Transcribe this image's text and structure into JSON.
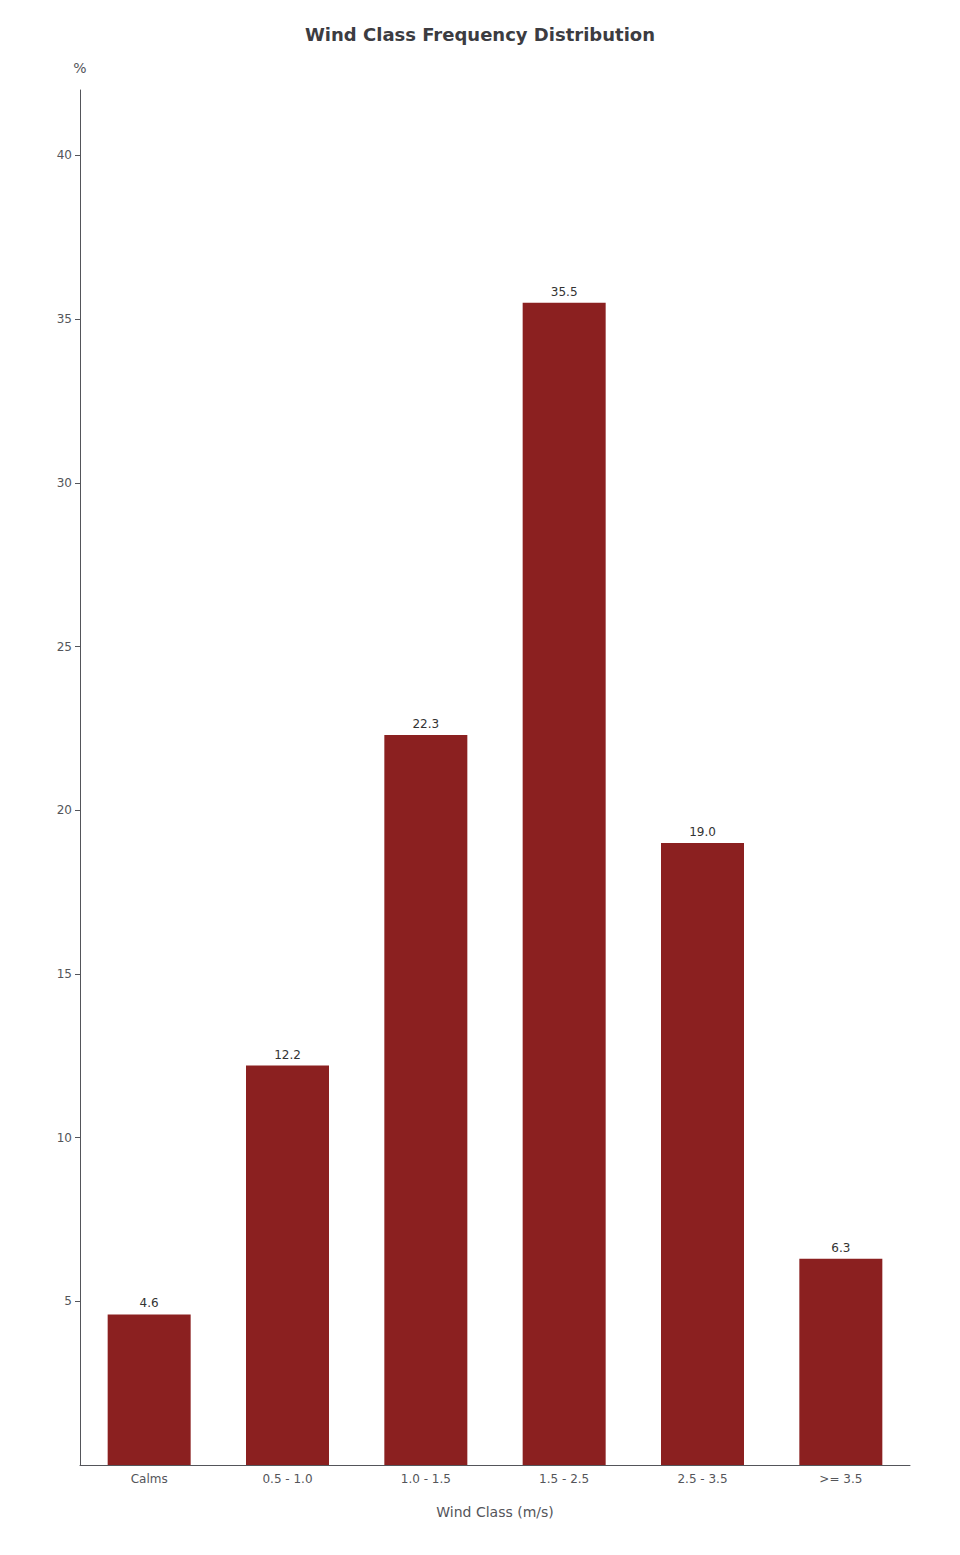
{
  "chart_data": {
    "type": "bar",
    "title": "Wind Class Frequency Distribution",
    "categories": [
      "Calms",
      "0.5 - 1.0",
      "1.0 - 1.5",
      "1.5 - 2.5",
      "2.5 - 3.5",
      ">= 3.5"
    ],
    "values": [
      4.6,
      12.2,
      22.3,
      35.5,
      19.0,
      6.3
    ],
    "value_labels": [
      "4.6",
      "12.2",
      "22.3",
      "35.5",
      "19.0",
      "6.3"
    ],
    "color": "#8b2020",
    "xlabel": "Wind Class (m/s)",
    "ylabel": "%",
    "ylim": [
      0,
      42
    ],
    "yticks": [
      5,
      10,
      15,
      20,
      25,
      30,
      35,
      40
    ],
    "grid": false,
    "data_labels": true
  }
}
